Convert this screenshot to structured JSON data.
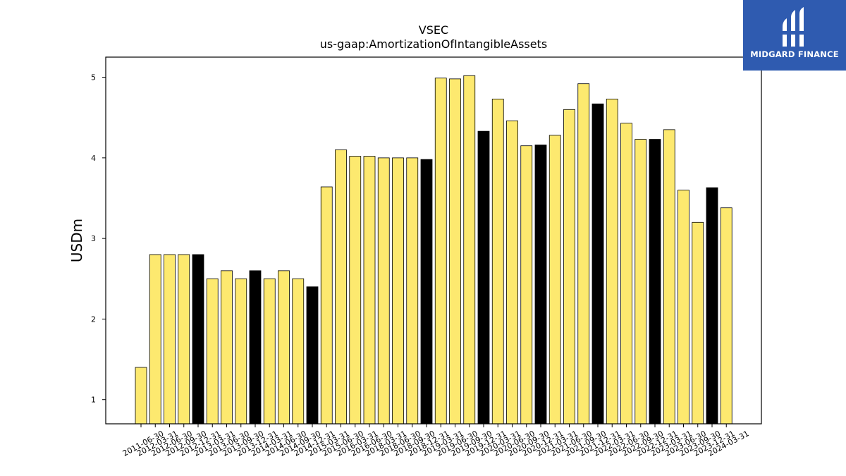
{
  "logo": {
    "text": "MIDGARD FINANCE"
  },
  "chart_data": {
    "type": "bar",
    "title": "VSEC",
    "subtitle": "us-gaap:AmortizationOfIntangibleAssets",
    "xlabel": "",
    "ylabel": "USDm",
    "ylim": [
      0.7,
      5.25
    ],
    "yticks": [
      1,
      2,
      3,
      4,
      5
    ],
    "colors": {
      "quarter": "#fde96f",
      "year_end": "#000000",
      "edge": "#000000"
    },
    "categories": [
      "2011-06-30",
      "2012-03-31",
      "2012-06-30",
      "2012-09-30",
      "2012-12-31",
      "2013-03-31",
      "2013-06-30",
      "2013-09-30",
      "2013-12-31",
      "2014-03-31",
      "2014-06-30",
      "2014-09-30",
      "2014-12-31",
      "2015-03-31",
      "2015-06-30",
      "2016-03-31",
      "2016-06-30",
      "2018-03-31",
      "2018-06-30",
      "2018-09-30",
      "2018-12-31",
      "2019-03-31",
      "2019-06-30",
      "2019-09-30",
      "2019-12-31",
      "2020-03-31",
      "2020-06-30",
      "2020-09-30",
      "2020-12-31",
      "2021-03-31",
      "2021-06-30",
      "2021-09-30",
      "2021-12-31",
      "2022-03-31",
      "2022-06-30",
      "2022-09-30",
      "2022-12-31",
      "2023-03-31",
      "2023-06-30",
      "2023-09-30",
      "2023-12-31",
      "2024-03-31"
    ],
    "values": [
      1.4,
      2.8,
      2.8,
      2.8,
      2.8,
      2.5,
      2.6,
      2.5,
      2.6,
      2.5,
      2.6,
      2.5,
      2.4,
      3.64,
      4.1,
      4.02,
      4.02,
      4.0,
      4.0,
      4.0,
      3.98,
      4.99,
      4.98,
      5.02,
      4.33,
      4.73,
      4.46,
      4.15,
      4.16,
      4.28,
      4.6,
      4.92,
      4.67,
      4.73,
      4.43,
      4.23,
      4.23,
      4.35,
      3.6,
      3.2,
      3.63,
      3.38
    ],
    "bar_types": [
      "q",
      "q",
      "q",
      "q",
      "y",
      "q",
      "q",
      "q",
      "y",
      "q",
      "q",
      "q",
      "y",
      "q",
      "q",
      "q",
      "q",
      "q",
      "q",
      "q",
      "y",
      "q",
      "q",
      "q",
      "y",
      "q",
      "q",
      "q",
      "y",
      "q",
      "q",
      "q",
      "y",
      "q",
      "q",
      "q",
      "y",
      "q",
      "q",
      "q",
      "y",
      "q"
    ],
    "grid": false,
    "legend": "none"
  }
}
